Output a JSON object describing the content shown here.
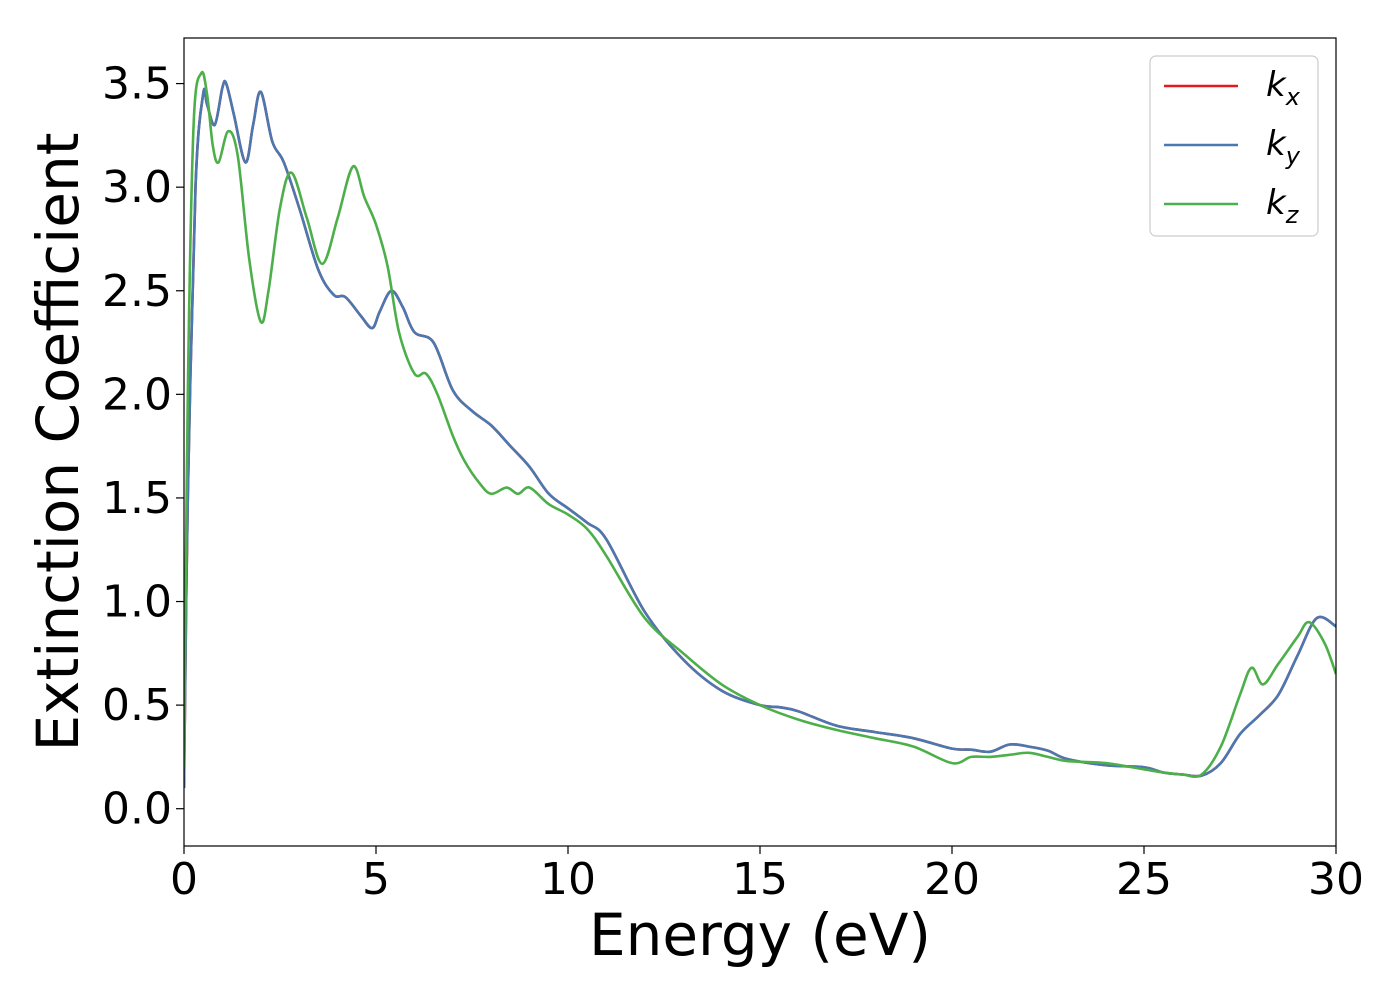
{
  "chart_data": {
    "type": "line",
    "title": "",
    "xlabel": "Energy (eV)",
    "ylabel": "Extinction Coefficient",
    "xlim": [
      0,
      30
    ],
    "ylim": [
      -0.18,
      3.72
    ],
    "xticks": [
      0,
      5,
      10,
      15,
      20,
      25,
      30
    ],
    "xtick_labels": [
      "0",
      "5",
      "10",
      "15",
      "20",
      "25",
      "30"
    ],
    "yticks": [
      0.0,
      0.5,
      1.0,
      1.5,
      2.0,
      2.5,
      3.0,
      3.5
    ],
    "ytick_labels": [
      "0.0",
      "0.5",
      "1.0",
      "1.5",
      "2.0",
      "2.5",
      "3.0",
      "3.5"
    ],
    "grid": false,
    "legend_position": "top-right",
    "series": [
      {
        "name": "k",
        "subscript": "x",
        "color": "#e41a1c",
        "x": [
          0,
          0.1,
          0.3,
          0.5,
          0.6,
          0.8,
          1.0,
          1.1,
          1.3,
          1.6,
          1.8,
          2.0,
          2.3,
          2.6,
          3.0,
          3.5,
          3.9,
          4.2,
          4.6,
          4.9,
          5.1,
          5.4,
          5.7,
          6.0,
          6.5,
          7.0,
          7.5,
          8.0,
          8.5,
          9.0,
          9.5,
          10.0,
          10.5,
          11.0,
          12.0,
          13.0,
          14.0,
          15.0,
          15.5,
          16.0,
          17.0,
          18.0,
          19.0,
          20.0,
          20.5,
          21.0,
          21.5,
          22.0,
          22.5,
          23.0,
          24.0,
          25.0,
          25.5,
          26.0,
          26.5,
          27.0,
          27.5,
          28.0,
          28.5,
          29.0,
          29.5,
          30.0
        ],
        "y": [
          0.1,
          1.5,
          3.0,
          3.45,
          3.4,
          3.3,
          3.48,
          3.5,
          3.35,
          3.12,
          3.3,
          3.46,
          3.22,
          3.12,
          2.9,
          2.6,
          2.48,
          2.47,
          2.38,
          2.32,
          2.4,
          2.5,
          2.42,
          2.3,
          2.25,
          2.02,
          1.92,
          1.85,
          1.75,
          1.65,
          1.52,
          1.45,
          1.38,
          1.3,
          0.95,
          0.72,
          0.57,
          0.5,
          0.49,
          0.47,
          0.4,
          0.37,
          0.34,
          0.29,
          0.285,
          0.275,
          0.31,
          0.3,
          0.28,
          0.24,
          0.21,
          0.2,
          0.175,
          0.165,
          0.16,
          0.22,
          0.36,
          0.45,
          0.55,
          0.74,
          0.92,
          0.88
        ]
      },
      {
        "name": "k",
        "subscript": "y",
        "color": "#4a78b0",
        "x": [
          0,
          0.1,
          0.3,
          0.5,
          0.6,
          0.8,
          1.0,
          1.1,
          1.3,
          1.6,
          1.8,
          2.0,
          2.3,
          2.6,
          3.0,
          3.5,
          3.9,
          4.2,
          4.6,
          4.9,
          5.1,
          5.4,
          5.7,
          6.0,
          6.5,
          7.0,
          7.5,
          8.0,
          8.5,
          9.0,
          9.5,
          10.0,
          10.5,
          11.0,
          12.0,
          13.0,
          14.0,
          15.0,
          15.5,
          16.0,
          17.0,
          18.0,
          19.0,
          20.0,
          20.5,
          21.0,
          21.5,
          22.0,
          22.5,
          23.0,
          24.0,
          25.0,
          25.5,
          26.0,
          26.5,
          27.0,
          27.5,
          28.0,
          28.5,
          29.0,
          29.5,
          30.0
        ],
        "y": [
          0.1,
          1.5,
          3.0,
          3.45,
          3.4,
          3.3,
          3.48,
          3.5,
          3.35,
          3.12,
          3.3,
          3.46,
          3.22,
          3.12,
          2.9,
          2.6,
          2.48,
          2.47,
          2.38,
          2.32,
          2.4,
          2.5,
          2.42,
          2.3,
          2.25,
          2.02,
          1.92,
          1.85,
          1.75,
          1.65,
          1.52,
          1.45,
          1.38,
          1.3,
          0.95,
          0.72,
          0.57,
          0.5,
          0.49,
          0.47,
          0.4,
          0.37,
          0.34,
          0.29,
          0.285,
          0.275,
          0.31,
          0.3,
          0.28,
          0.24,
          0.21,
          0.2,
          0.175,
          0.165,
          0.16,
          0.22,
          0.36,
          0.45,
          0.55,
          0.74,
          0.92,
          0.88
        ]
      },
      {
        "name": "k",
        "subscript": "z",
        "color": "#4daf4a",
        "x": [
          0,
          0.1,
          0.25,
          0.45,
          0.6,
          0.75,
          0.9,
          1.15,
          1.4,
          1.7,
          2.0,
          2.2,
          2.5,
          2.8,
          3.2,
          3.6,
          4.0,
          4.4,
          4.7,
          5.0,
          5.3,
          5.6,
          6.0,
          6.3,
          6.6,
          7.0,
          7.3,
          7.7,
          8.0,
          8.4,
          8.7,
          9.0,
          9.5,
          10.0,
          10.5,
          11.0,
          12.0,
          13.0,
          14.0,
          15.0,
          16.0,
          17.0,
          18.0,
          19.0,
          20.0,
          20.5,
          21.0,
          21.5,
          22.0,
          22.5,
          23.0,
          24.0,
          25.0,
          25.5,
          26.0,
          26.5,
          27.0,
          27.5,
          27.8,
          28.1,
          28.5,
          29.0,
          29.3,
          29.7,
          30.0
        ],
        "y": [
          0.2,
          2.0,
          3.3,
          3.55,
          3.45,
          3.2,
          3.12,
          3.27,
          3.15,
          2.65,
          2.35,
          2.5,
          2.9,
          3.07,
          2.85,
          2.63,
          2.85,
          3.1,
          2.95,
          2.82,
          2.62,
          2.3,
          2.1,
          2.1,
          2.0,
          1.8,
          1.68,
          1.57,
          1.52,
          1.55,
          1.52,
          1.55,
          1.47,
          1.42,
          1.35,
          1.22,
          0.92,
          0.75,
          0.6,
          0.5,
          0.43,
          0.38,
          0.34,
          0.3,
          0.22,
          0.25,
          0.25,
          0.26,
          0.27,
          0.25,
          0.23,
          0.22,
          0.19,
          0.175,
          0.165,
          0.165,
          0.3,
          0.55,
          0.68,
          0.6,
          0.7,
          0.83,
          0.9,
          0.8,
          0.65
        ]
      }
    ]
  }
}
